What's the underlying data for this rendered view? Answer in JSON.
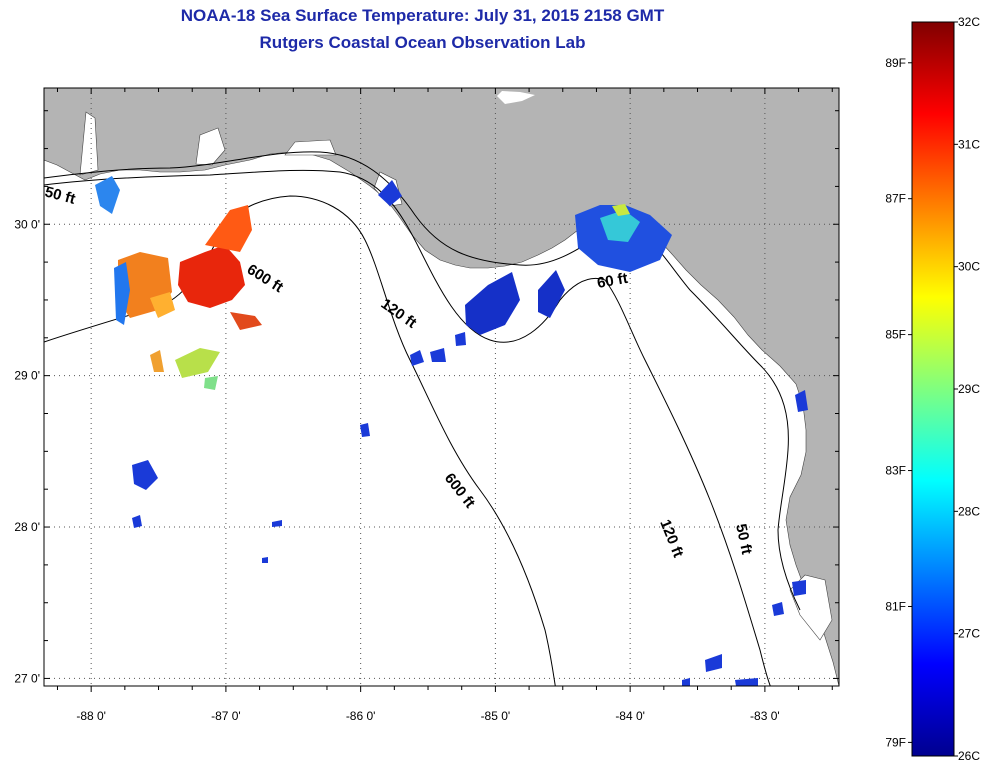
{
  "header": {
    "title": "NOAA-18 Sea Surface Temperature:  July 31, 2015 2158 GMT",
    "subtitle": "Rutgers Coastal Ocean Observation Lab"
  },
  "map": {
    "lon_range": [
      -88.35,
      -82.45
    ],
    "lat_range": [
      26.95,
      30.9
    ],
    "lon_ticks": [
      {
        "value": -88,
        "label": "-88 0'"
      },
      {
        "value": -87,
        "label": "-87 0'"
      },
      {
        "value": -86,
        "label": "-86 0'"
      },
      {
        "value": -85,
        "label": "-85 0'"
      },
      {
        "value": -84,
        "label": "-84 0'"
      },
      {
        "value": -83,
        "label": "-83 0'"
      }
    ],
    "lat_ticks": [
      {
        "value": 27,
        "label": "27 0'"
      },
      {
        "value": 28,
        "label": "28 0'"
      },
      {
        "value": 29,
        "label": "29 0'"
      },
      {
        "value": 30,
        "label": "30 0'"
      }
    ],
    "contour_labels": [
      "50 ft",
      "600 ft",
      "120 ft",
      "60 ft",
      "600 ft",
      "120 ft",
      "50 ft"
    ],
    "colors": {
      "land": "#b4b4b4",
      "water": "#ffffff",
      "grid": "#555555"
    }
  },
  "colorbar": {
    "range_c": [
      26,
      32
    ],
    "celsius_labels": [
      "32C",
      "31C",
      "30C",
      "29C",
      "28C",
      "27C",
      "26C"
    ],
    "fahrenheit_labels": [
      "89F",
      "87F",
      "85F",
      "83F",
      "81F",
      "79F"
    ],
    "colormap": "jet"
  }
}
